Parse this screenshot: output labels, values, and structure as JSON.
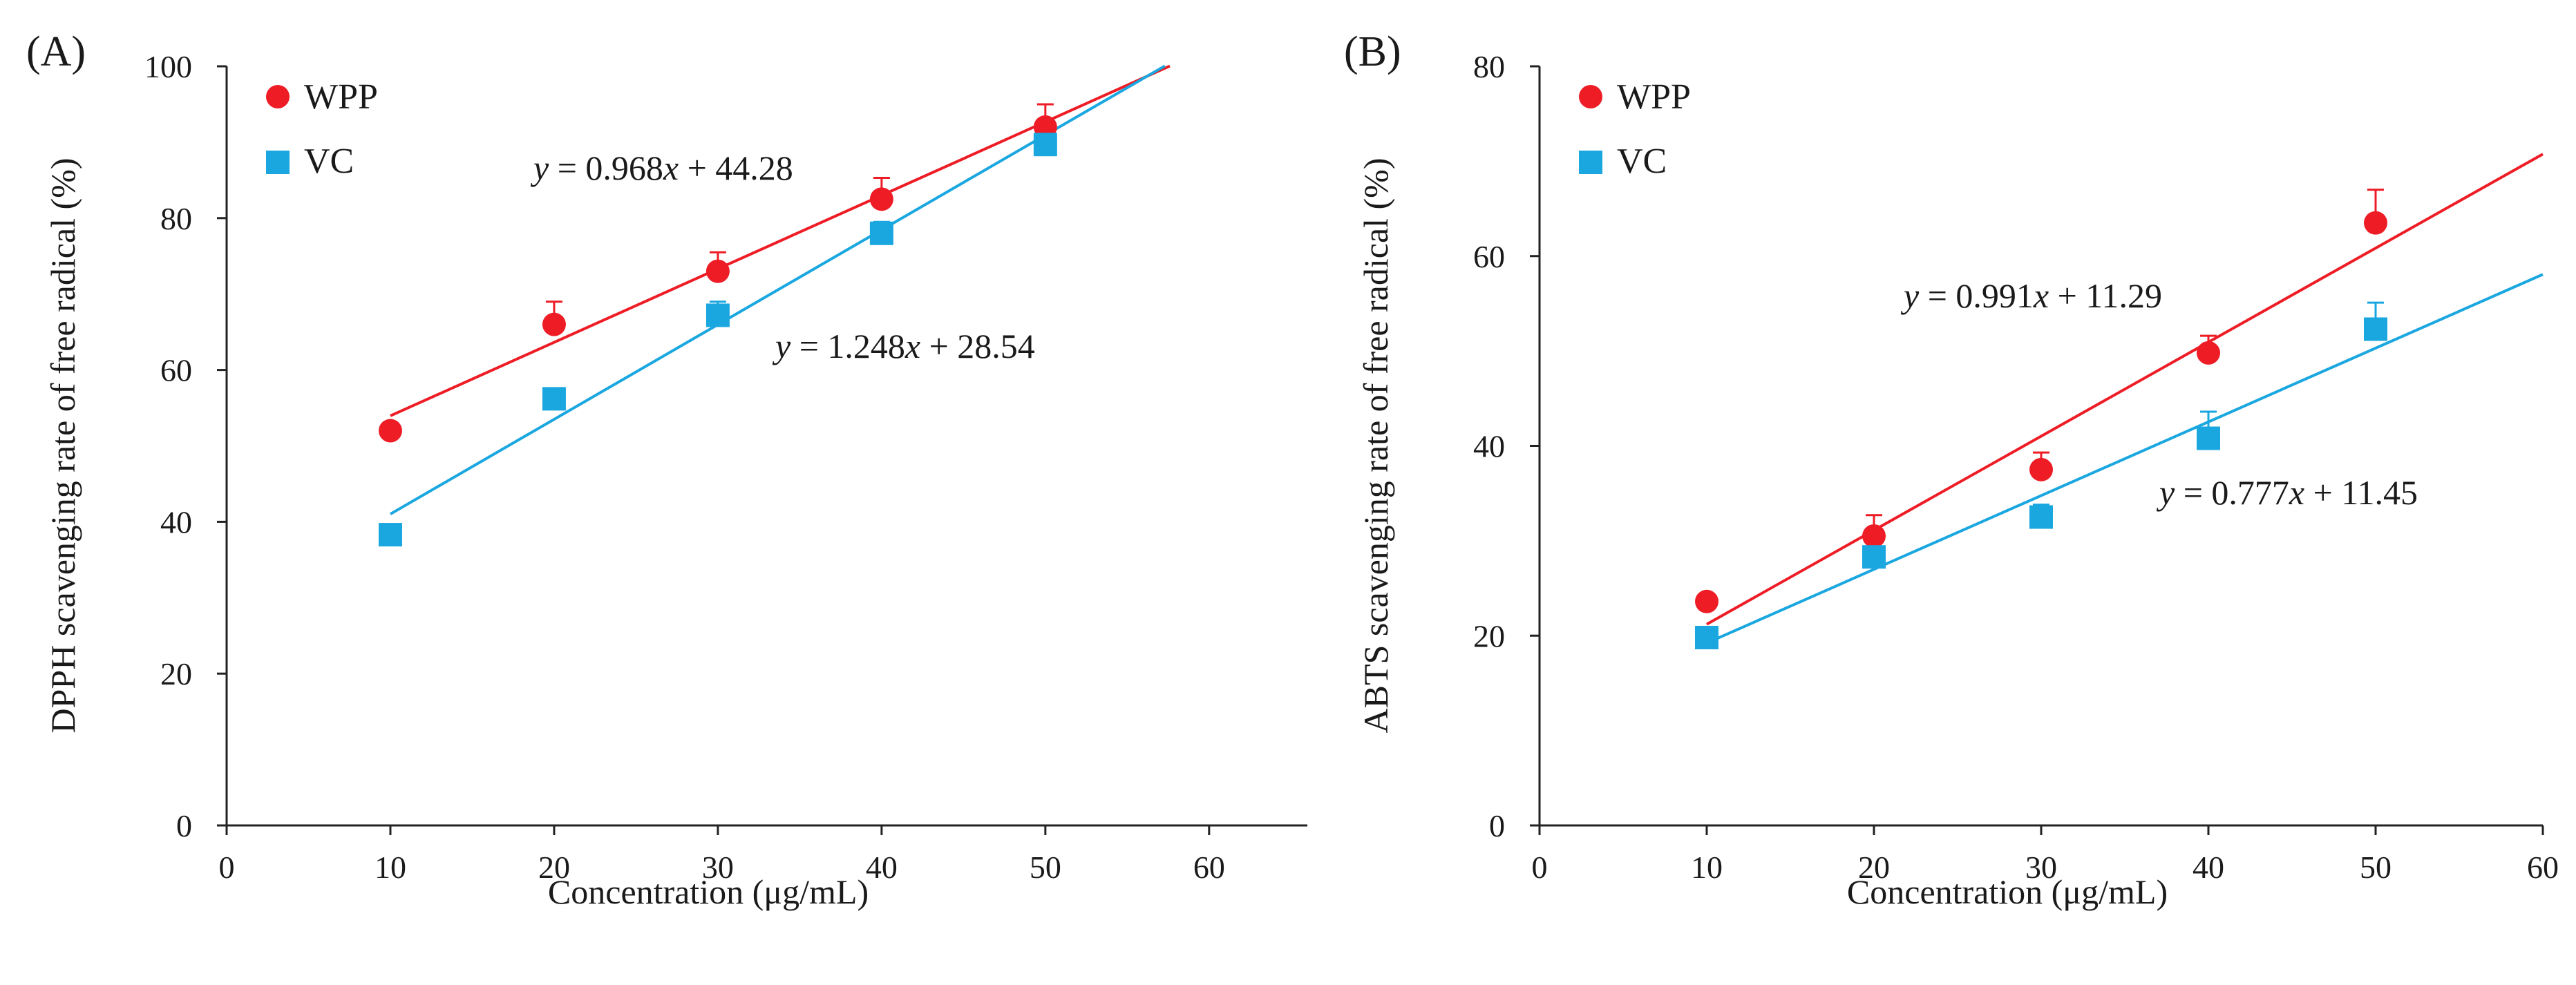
{
  "chart_data": [
    {
      "type": "scatter",
      "panel_label": "(A)",
      "xlabel": "Concentration (μg/mL)",
      "ylabel": "DPPH scavenging rate of free radical (%)",
      "xlim": [
        0,
        66
      ],
      "ylim": [
        0,
        100
      ],
      "xticks": [
        0,
        10,
        20,
        30,
        40,
        50,
        60
      ],
      "yticks": [
        0,
        20,
        40,
        60,
        80,
        100
      ],
      "legend_position": "top-left",
      "series": [
        {
          "name": "WPP",
          "color": "#ee1c25",
          "marker": "circle",
          "x": [
            10,
            20,
            30,
            40,
            50
          ],
          "values": [
            52,
            66,
            73,
            82.5,
            92
          ],
          "errors": [
            0,
            3,
            2.5,
            2.8,
            3
          ],
          "fit": {
            "slope": 0.968,
            "intercept": 44.28,
            "range": [
              10,
              57.6
            ]
          },
          "equation": {
            "prefix": "y",
            "body": " = 0.968",
            "var": "x",
            "suffix": " + 44.28"
          }
        },
        {
          "name": "VC",
          "color": "#1aa7e0",
          "marker": "square",
          "x": [
            10,
            20,
            30,
            40,
            50
          ],
          "values": [
            38.3,
            56.2,
            67.2,
            78,
            89.7
          ],
          "errors": [
            0,
            0,
            1.8,
            1.5,
            0
          ],
          "fit": {
            "slope": 1.248,
            "intercept": 28.54,
            "range": [
              10,
              57.3
            ]
          },
          "equation": {
            "prefix": "y",
            "body": " = 1.248",
            "var": "x",
            "suffix": " + 28.54"
          }
        }
      ]
    },
    {
      "type": "scatter",
      "panel_label": "(B)",
      "xlabel": "Concentration (μg/mL)",
      "ylabel": "ABTS scavenging rate of free radical (%)",
      "xlim": [
        0,
        60
      ],
      "ylim": [
        0,
        80
      ],
      "xticks": [
        0,
        10,
        20,
        30,
        40,
        50,
        60
      ],
      "yticks": [
        0,
        20,
        40,
        60,
        80
      ],
      "legend_position": "top-left",
      "series": [
        {
          "name": "WPP",
          "color": "#ee1c25",
          "marker": "circle",
          "x": [
            10,
            20,
            30,
            40,
            50
          ],
          "values": [
            23.6,
            30.5,
            37.5,
            49.8,
            63.5
          ],
          "errors": [
            0,
            2.2,
            1.8,
            1.8,
            3.5
          ],
          "fit": {
            "slope": 0.991,
            "intercept": 11.29,
            "range": [
              10,
              60
            ]
          },
          "equation": {
            "prefix": "y",
            "body": " = 0.991",
            "var": "x",
            "suffix": " + 11.29"
          }
        },
        {
          "name": "VC",
          "color": "#1aa7e0",
          "marker": "square",
          "x": [
            10,
            20,
            30,
            40,
            50
          ],
          "values": [
            19.8,
            28.3,
            32.5,
            40.8,
            52.3
          ],
          "errors": [
            0,
            0,
            1.3,
            2.8,
            2.8
          ],
          "fit": {
            "slope": 0.777,
            "intercept": 11.45,
            "range": [
              10,
              60
            ]
          },
          "equation": {
            "prefix": "y",
            "body": " = 0.777",
            "var": "x",
            "suffix": " + 11.45"
          }
        }
      ]
    }
  ]
}
